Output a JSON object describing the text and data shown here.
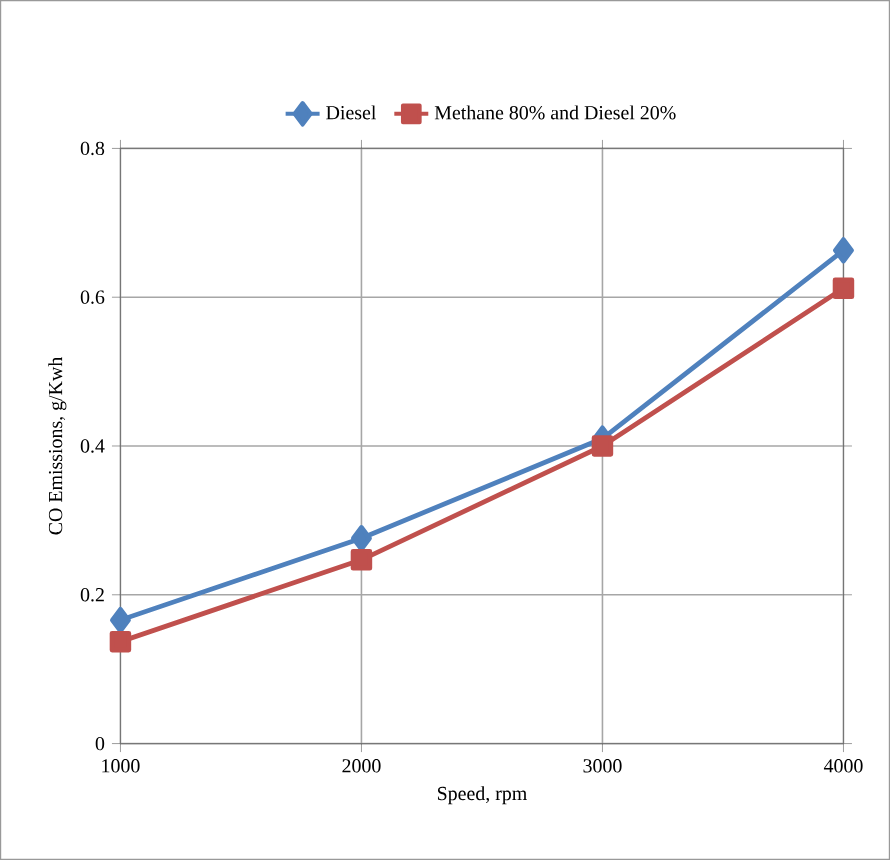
{
  "chart_data": {
    "type": "line",
    "xlabel": "Speed, rpm",
    "ylabel": "CO Emissions, g/Kwh",
    "x": [
      1000,
      2000,
      3000,
      4000
    ],
    "series": [
      {
        "name": "Diesel",
        "color": "#4f81bd",
        "marker": "diamond",
        "values": [
          0.166,
          0.276,
          0.41,
          0.663
        ]
      },
      {
        "name": "Methane 80% and Diesel 20%",
        "color": "#c0504d",
        "marker": "square",
        "values": [
          0.137,
          0.247,
          0.4,
          0.612
        ]
      }
    ],
    "xlim": [
      1000,
      4000
    ],
    "xticks": [
      1000,
      2000,
      3000,
      4000
    ],
    "ylim": [
      0,
      0.8
    ],
    "yticks": [
      0,
      0.2,
      0.4,
      0.6,
      0.8
    ],
    "grid": true,
    "legend": "top",
    "line_style": "solid"
  }
}
